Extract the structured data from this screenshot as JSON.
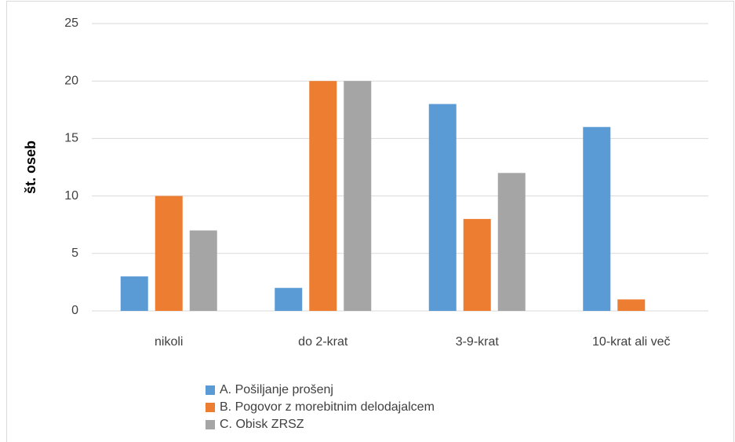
{
  "chart_data": {
    "type": "bar",
    "y_label": "št. oseb",
    "categories": [
      "nikoli",
      "do 2-krat",
      "3-9-krat",
      "10-krat ali več"
    ],
    "series": [
      {
        "name": "A. Pošiljanje prošenj",
        "color": "#5b9bd5",
        "values": [
          3,
          2,
          18,
          16
        ]
      },
      {
        "name": "B. Pogovor z morebitnim delodajalcem",
        "color": "#ed7d31",
        "values": [
          10,
          20,
          8,
          1
        ]
      },
      {
        "name": "C. Obisk ZRSZ",
        "color": "#a5a5a5",
        "values": [
          7,
          20,
          12,
          0
        ]
      }
    ],
    "ylim": [
      0,
      25
    ],
    "yticks": [
      0,
      5,
      10,
      15,
      20,
      25
    ],
    "grid": true,
    "legend": "bottom"
  }
}
